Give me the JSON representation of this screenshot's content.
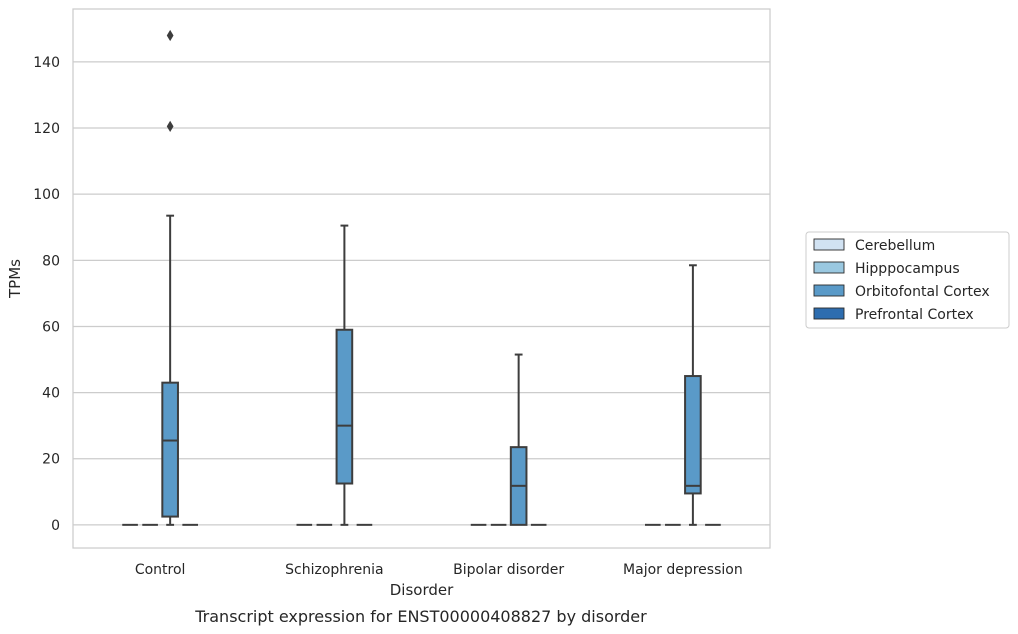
{
  "chart_data": {
    "type": "box",
    "xlabel": "Disorder",
    "ylabel": "TPMs",
    "caption": "Transcript expression for ENST00000408827 by disorder",
    "ylim": [
      -7,
      156
    ],
    "yticks": [
      0,
      20,
      40,
      60,
      80,
      100,
      120,
      140
    ],
    "grid": "horizontal",
    "legend_position": "right",
    "categories": [
      "Control",
      "Schizophrenia",
      "Bipolar disorder",
      "Major depression"
    ],
    "series": [
      {
        "name": "Cerebellum",
        "color": "#d1e2f2",
        "boxes": [
          {
            "min": 0,
            "q1": 0,
            "median": 0,
            "q3": 0,
            "max": 0,
            "outliers": []
          },
          {
            "min": 0,
            "q1": 0,
            "median": 0,
            "q3": 0,
            "max": 0,
            "outliers": []
          },
          {
            "min": 0,
            "q1": 0,
            "median": 0,
            "q3": 0,
            "max": 0,
            "outliers": []
          },
          {
            "min": 0,
            "q1": 0,
            "median": 0,
            "q3": 0,
            "max": 0,
            "outliers": []
          }
        ]
      },
      {
        "name": "Hipppocampus",
        "color": "#9ac8e0",
        "boxes": [
          {
            "min": 0,
            "q1": 0,
            "median": 0,
            "q3": 0,
            "max": 0,
            "outliers": []
          },
          {
            "min": 0,
            "q1": 0,
            "median": 0,
            "q3": 0,
            "max": 0,
            "outliers": []
          },
          {
            "min": 0,
            "q1": 0,
            "median": 0,
            "q3": 0,
            "max": 0,
            "outliers": []
          },
          {
            "min": 0,
            "q1": 0,
            "median": 0,
            "q3": 0,
            "max": 0,
            "outliers": []
          }
        ]
      },
      {
        "name": "Orbitofontal Cortex",
        "color": "#5a9ac8",
        "boxes": [
          {
            "min": 0,
            "q1": 2.5,
            "median": 25.5,
            "q3": 43,
            "max": 93.5,
            "outliers": [
              120.5,
              148
            ]
          },
          {
            "min": 0,
            "q1": 12.5,
            "median": 30,
            "q3": 59,
            "max": 90.5,
            "outliers": []
          },
          {
            "min": 0,
            "q1": 0,
            "median": 11.8,
            "q3": 23.5,
            "max": 51.5,
            "outliers": []
          },
          {
            "min": 0,
            "q1": 9.5,
            "median": 11.8,
            "q3": 45,
            "max": 78.5,
            "outliers": []
          }
        ]
      },
      {
        "name": "Prefrontal Cortex",
        "color": "#2e6daf",
        "boxes": [
          {
            "min": 0,
            "q1": 0,
            "median": 0,
            "q3": 0,
            "max": 0,
            "outliers": []
          },
          {
            "min": 0,
            "q1": 0,
            "median": 0,
            "q3": 0,
            "max": 0,
            "outliers": []
          },
          {
            "min": 0,
            "q1": 0,
            "median": 0,
            "q3": 0,
            "max": 0,
            "outliers": []
          },
          {
            "min": 0,
            "q1": 0,
            "median": 0,
            "q3": 0,
            "max": 0,
            "outliers": []
          }
        ]
      }
    ]
  }
}
